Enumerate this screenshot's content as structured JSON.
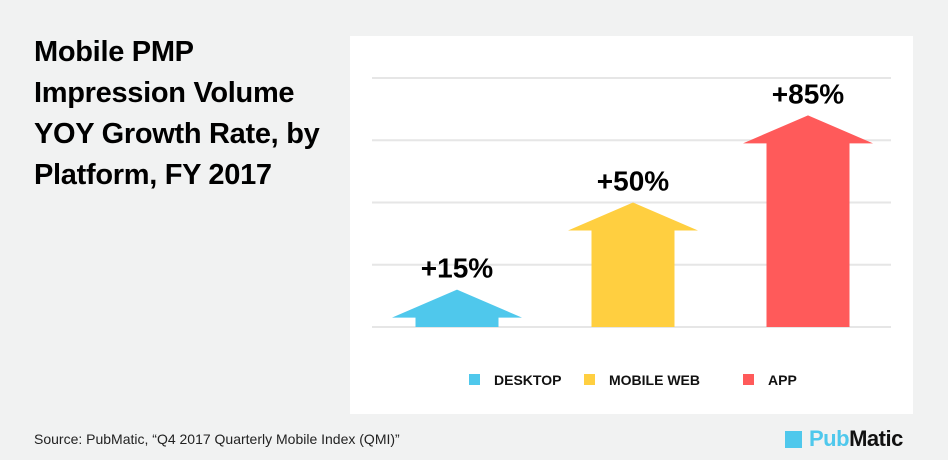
{
  "chart_data": {
    "type": "bar",
    "title": "Mobile PMP Impression Volume YOY Growth Rate, by Platform, FY 2017",
    "categories": [
      "DESKTOP",
      "MOBILE WEB",
      "APP"
    ],
    "values": [
      15,
      50,
      85
    ],
    "data_labels": [
      "+15%",
      "+50%",
      "+85%"
    ],
    "colors": [
      "#4fc8ec",
      "#ffcf40",
      "#ff5a5a"
    ],
    "ylim": [
      0,
      100
    ],
    "grid": true,
    "grid_step": 25,
    "legend_placement": "bottom",
    "mark_shape": "up-arrow"
  },
  "source": "Source: PubMatic, “Q4 2017 Quarterly Mobile Index (QMI)”",
  "logo": {
    "part1": "Pub",
    "part2": "Matic"
  }
}
